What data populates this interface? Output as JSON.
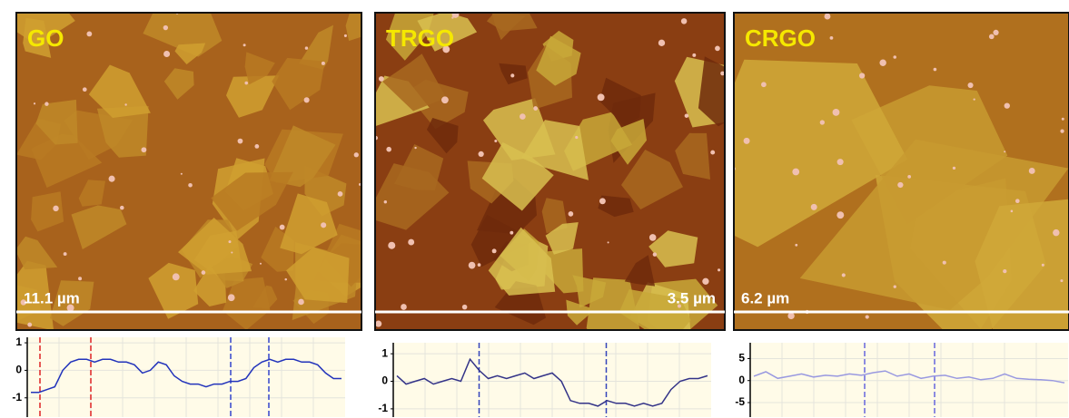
{
  "panels": [
    {
      "label": "GO",
      "scale_bar": "11.1 µm",
      "profile": {
        "type": "line",
        "color": "#2233bb",
        "ylim": [
          -1.7,
          1.2
        ],
        "yticks": [
          1,
          0,
          -1
        ],
        "values": [
          -0.8,
          -0.8,
          -0.7,
          -0.6,
          0.0,
          0.3,
          0.4,
          0.4,
          0.3,
          0.4,
          0.4,
          0.3,
          0.3,
          0.2,
          -0.1,
          0.0,
          0.3,
          0.2,
          -0.2,
          -0.4,
          -0.5,
          -0.5,
          -0.6,
          -0.5,
          -0.5,
          -0.4,
          -0.4,
          -0.3,
          0.1,
          0.3,
          0.4,
          0.3,
          0.4,
          0.4,
          0.3,
          0.3,
          0.2,
          -0.1,
          -0.3,
          -0.3
        ]
      }
    },
    {
      "label": "TRGO",
      "scale_bar": "3.5 µm",
      "profile": {
        "type": "line",
        "color": "#333388",
        "ylim": [
          -1.3,
          1.4
        ],
        "yticks": [
          1,
          0,
          -1
        ],
        "values": [
          0.2,
          -0.1,
          0.0,
          0.1,
          -0.1,
          0.0,
          0.1,
          0.0,
          0.8,
          0.4,
          0.1,
          0.2,
          0.1,
          0.2,
          0.3,
          0.1,
          0.2,
          0.3,
          0.0,
          -0.7,
          -0.8,
          -0.8,
          -0.9,
          -0.7,
          -0.8,
          -0.8,
          -0.9,
          -0.8,
          -0.9,
          -0.8,
          -0.3,
          0.0,
          0.1,
          0.1,
          0.2
        ]
      }
    },
    {
      "label": "CRGO",
      "scale_bar": "6.2 µm",
      "profile": {
        "type": "line",
        "color": "#9999e0",
        "ylim": [
          -8.3,
          8.6
        ],
        "yticks": [
          5,
          0,
          -5
        ],
        "values": [
          1,
          2,
          0.5,
          1,
          1.5,
          0.8,
          1.2,
          1,
          1.5,
          1.2,
          1.8,
          2.2,
          1,
          1.5,
          0.5,
          1,
          1.2,
          0.5,
          0.8,
          0.2,
          0.5,
          1.5,
          0.5,
          0.3,
          0.2,
          0,
          -0.5
        ]
      }
    }
  ]
}
